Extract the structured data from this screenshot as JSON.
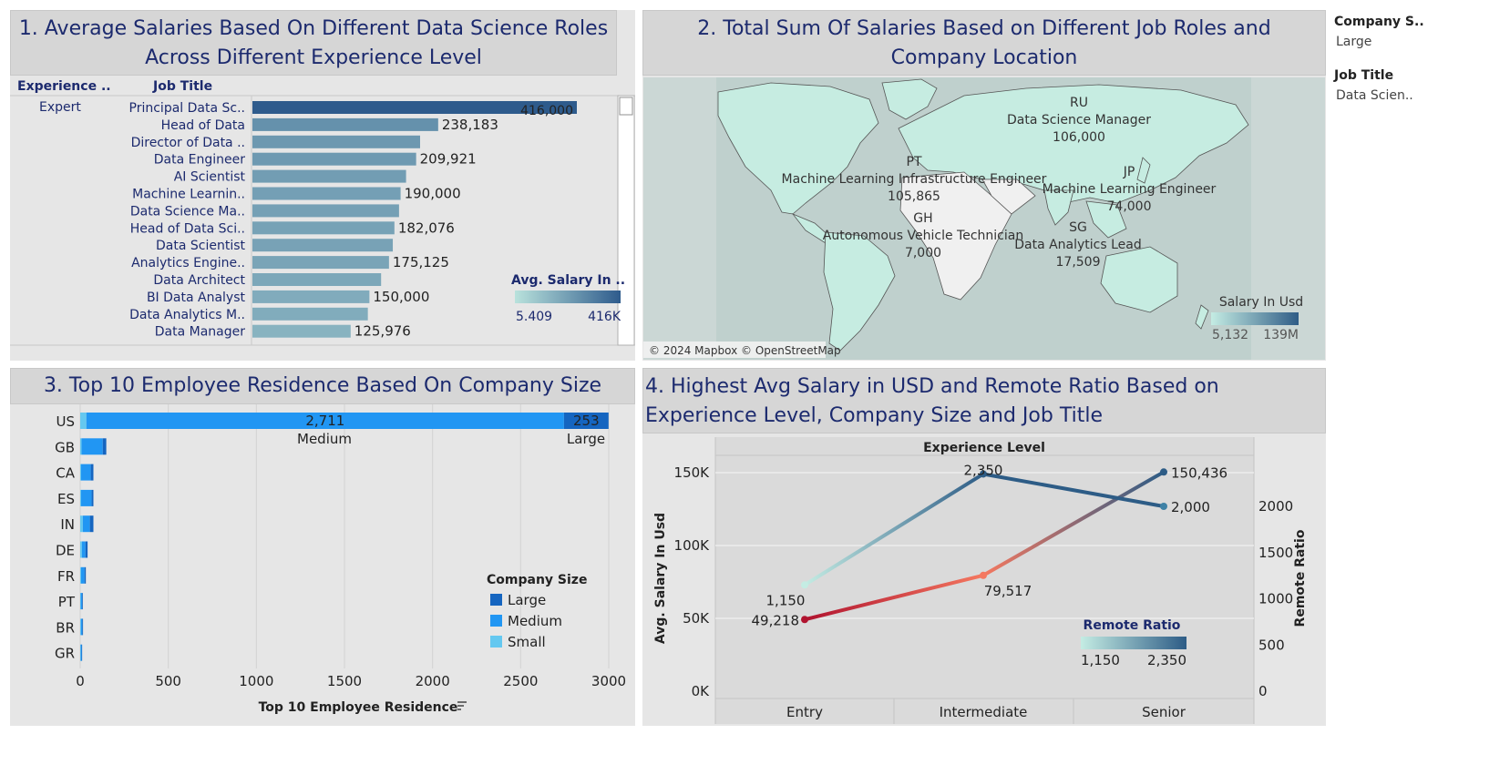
{
  "filters": {
    "company_size_label": "Company S..",
    "company_size_value": "Large",
    "job_title_label": "Job Title",
    "job_title_value": "Data Scien.."
  },
  "panel1": {
    "title_line1": "1. Average Salaries Based On Different Data Science Roles",
    "title_line2": "Across Different Experience Level",
    "col_experience": "Experience ..",
    "col_job_title": "Job Title",
    "experience_value": "Expert",
    "legend_title": "Avg. Salary In ..",
    "legend_min": "5.409",
    "legend_max": "416K",
    "colors": {
      "low": "#b9e2dc",
      "high": "#2e5b8c"
    }
  },
  "panel2": {
    "title_line1": "2. Total Sum Of Salaries Based on Different Job Roles and",
    "title_line2": "Company Location",
    "attribution": "© 2024 Mapbox © OpenStreetMap",
    "legend_title": "Salary In Usd",
    "legend_min": "5,132",
    "legend_max": "139M",
    "labels": [
      {
        "code": "RU",
        "role": "Data Science Manager",
        "value": "106,000"
      },
      {
        "code": "PT",
        "role": "Machine Learning Infrastructure Engineer",
        "value": "105,865"
      },
      {
        "code": "JP",
        "role": "Machine Learning Engineer",
        "value": "74,000"
      },
      {
        "code": "GH",
        "role": "Autonomous Vehicle Technician",
        "value": "7,000"
      },
      {
        "code": "SG",
        "role": "Data Analytics Lead",
        "value": "17,509"
      }
    ]
  },
  "panel3": {
    "title": "3. Top 10 Employee Residence Based On Company Size",
    "xlabel": "Top 10 Employee Residence",
    "us_medium_segment_label": "Medium",
    "us_large_segment_label": "Large",
    "legend_title": "Company Size",
    "legend_items": [
      {
        "name": "Large",
        "color": "#1565c0"
      },
      {
        "name": "Medium",
        "color": "#2196f3"
      },
      {
        "name": "Small",
        "color": "#64c8f0"
      }
    ]
  },
  "panel4": {
    "title_line1": "4. Highest Avg Salary in USD and Remote Ratio Based on",
    "title_line2": "Experience Level, Company Size and Job Title",
    "header": "Experience Level",
    "left_axis_label": "Avg. Salary In Usd",
    "right_axis_label": "Remote Ratio",
    "legend_title": "Remote Ratio",
    "legend_min": "1,150",
    "legend_max": "2,350"
  },
  "chart_data": [
    {
      "type": "bar",
      "orientation": "horizontal",
      "title": "1. Average Salaries Based On Different Data Science Roles Across Different Experience Level",
      "experience_level": "Expert",
      "categories": [
        "Principal Data Sc..",
        "Head of Data",
        "Director of Data ..",
        "Data Engineer",
        "AI Scientist",
        "Machine Learnin..",
        "Data Science Ma..",
        "Head of Data Sci..",
        "Data Scientist",
        "Analytics Engine..",
        "Data Architect",
        "BI Data Analyst",
        "Data Analytics M..",
        "Data Manager"
      ],
      "values": [
        416000,
        238183,
        215000,
        209921,
        197000,
        190000,
        188000,
        182076,
        180000,
        175125,
        165000,
        150000,
        148000,
        125976
      ],
      "data_labels": [
        "416,000",
        "238,183",
        "",
        "209,921",
        "",
        "190,000",
        "",
        "182,076",
        "",
        "175,125",
        "",
        "150,000",
        "",
        "125,976"
      ],
      "xlim": [
        0,
        420000
      ]
    },
    {
      "type": "bar",
      "orientation": "horizontal",
      "stacked": true,
      "title": "3. Top 10 Employee Residence Based On Company Size",
      "xlabel": "Top 10 Employee Residence",
      "categories": [
        "US",
        "GB",
        "CA",
        "ES",
        "IN",
        "DE",
        "FR",
        "PT",
        "BR",
        "GR"
      ],
      "series": [
        {
          "name": "Small",
          "values": [
            35,
            8,
            5,
            5,
            15,
            10,
            5,
            3,
            4,
            3
          ],
          "color": "#64c8f0"
        },
        {
          "name": "Medium",
          "values": [
            2711,
            120,
            55,
            60,
            40,
            20,
            20,
            8,
            8,
            5
          ],
          "color": "#2196f3"
        },
        {
          "name": "Large",
          "values": [
            253,
            20,
            15,
            10,
            20,
            12,
            7,
            4,
            4,
            3
          ],
          "color": "#1565c0"
        }
      ],
      "us_data_labels": {
        "Medium": "2,711",
        "Large": "253"
      },
      "xticks": [
        0,
        500,
        1000,
        1500,
        2000,
        2500,
        3000
      ],
      "xlim": [
        0,
        3000
      ]
    },
    {
      "type": "line",
      "title": "4. Highest Avg Salary in USD and Remote Ratio Based on Experience Level, Company Size and Job Title",
      "x": [
        "Entry",
        "Intermediate",
        "Senior"
      ],
      "series": [
        {
          "name": "Avg. Salary In Usd",
          "axis": "left",
          "values": [
            49218,
            79517,
            150436
          ],
          "labels": [
            "49,218",
            "79,517",
            "150,436"
          ]
        },
        {
          "name": "Remote Ratio",
          "axis": "right",
          "values": [
            1150,
            2350,
            2000
          ],
          "labels": [
            "1,150",
            "2,350",
            "2,000"
          ]
        }
      ],
      "left_ylim": [
        0,
        160000
      ],
      "left_ticks": [
        "0K",
        "50K",
        "100K",
        "150K"
      ],
      "right_ylim": [
        0,
        2600
      ],
      "right_ticks": [
        "0",
        "500",
        "1000",
        "1500",
        "2000"
      ]
    }
  ]
}
